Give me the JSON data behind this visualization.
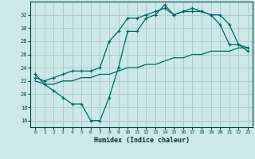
{
  "xlabel": "Humidex (Indice chaleur)",
  "xlim": [
    -0.5,
    23.5
  ],
  "ylim": [
    15.0,
    34.0
  ],
  "yticks": [
    16,
    18,
    20,
    22,
    24,
    26,
    28,
    30,
    32
  ],
  "xticks": [
    0,
    1,
    2,
    3,
    4,
    5,
    6,
    7,
    8,
    9,
    10,
    11,
    12,
    13,
    14,
    15,
    16,
    17,
    18,
    19,
    20,
    21,
    22,
    23
  ],
  "bg_color": "#cce8e8",
  "grid_color": "#aacccc",
  "line_color": "#006666",
  "line1_x": [
    0,
    1,
    2,
    3,
    4,
    5,
    6,
    7,
    8,
    9,
    10,
    11,
    12,
    13,
    14,
    15,
    16,
    17,
    18,
    19,
    20,
    21,
    22,
    23
  ],
  "line1_y": [
    23.0,
    21.5,
    20.5,
    19.5,
    18.5,
    18.5,
    16.0,
    16.0,
    19.5,
    24.0,
    29.5,
    29.5,
    31.5,
    32.0,
    33.5,
    32.0,
    32.5,
    33.0,
    32.5,
    32.0,
    30.5,
    27.5,
    27.5,
    26.5
  ],
  "line2_x": [
    0,
    1,
    2,
    3,
    4,
    5,
    6,
    7,
    8,
    9,
    10,
    11,
    12,
    13,
    14,
    15,
    16,
    17,
    18,
    19,
    20,
    21,
    22,
    23
  ],
  "line2_y": [
    22.5,
    22.0,
    22.5,
    23.0,
    23.5,
    23.5,
    23.5,
    24.0,
    28.0,
    29.5,
    31.5,
    31.5,
    32.0,
    32.5,
    33.0,
    32.0,
    32.5,
    32.5,
    32.5,
    32.0,
    32.0,
    30.5,
    27.5,
    27.0
  ],
  "line3_x": [
    0,
    1,
    2,
    3,
    4,
    5,
    6,
    7,
    8,
    9,
    10,
    11,
    12,
    13,
    14,
    15,
    16,
    17,
    18,
    19,
    20,
    21,
    22,
    23
  ],
  "line3_y": [
    22.0,
    21.5,
    21.5,
    22.0,
    22.0,
    22.5,
    22.5,
    23.0,
    23.0,
    23.5,
    24.0,
    24.0,
    24.5,
    24.5,
    25.0,
    25.5,
    25.5,
    26.0,
    26.0,
    26.5,
    26.5,
    26.5,
    27.0,
    27.0
  ]
}
